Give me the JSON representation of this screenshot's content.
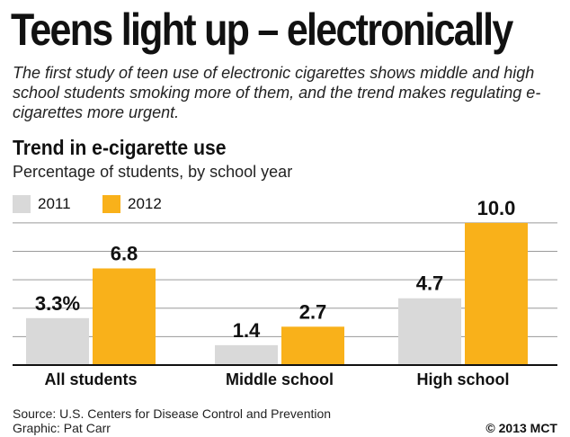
{
  "headline": "Teens light up – electronically",
  "dek": "The first study of teen use of electronic cigarettes shows middle and high school students smoking more of them, and the trend makes regulating e-cigarettes more urgent.",
  "source": "Source: U.S. Centers for Disease Control and Prevention",
  "credit": "Graphic: Pat Carr",
  "copyright": "© 2013 MCT",
  "colors": {
    "series_2011": "#d9d9d9",
    "series_2012": "#f9b11a",
    "grid": "#9a9a9a",
    "axis": "#111111"
  },
  "chart_data": {
    "type": "bar",
    "title": "Trend in e-cigarette use",
    "subtitle": "Percentage of students, by school year",
    "categories": [
      "All students",
      "Middle school",
      "High school"
    ],
    "series": [
      {
        "name": "2011",
        "values": [
          3.3,
          1.4,
          4.7
        ],
        "labels": [
          "3.3%",
          "1.4",
          "4.7"
        ],
        "color": "#d9d9d9"
      },
      {
        "name": "2012",
        "values": [
          6.8,
          2.7,
          10.0
        ],
        "labels": [
          "6.8",
          "2.7",
          "10.0"
        ],
        "color": "#f9b11a"
      }
    ],
    "ylim": [
      0,
      10.5
    ],
    "gridlines": [
      2,
      4,
      6,
      8,
      10
    ],
    "grid": true,
    "legend_position": "top-left",
    "xlabel": "",
    "ylabel": ""
  }
}
